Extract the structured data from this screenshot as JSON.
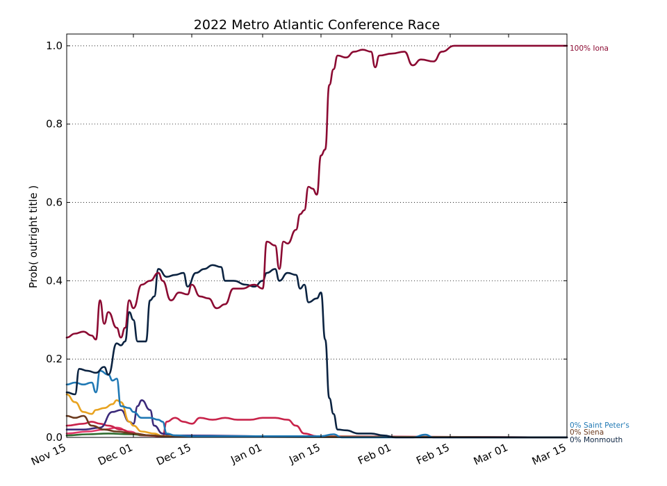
{
  "chart_data": {
    "type": "line",
    "title": "2022 Metro Atlantic Conference Race",
    "xlabel": "",
    "ylabel": "Prob( outright title )",
    "x_ticks": [
      "Nov 15",
      "Dec 01",
      "Dec 15",
      "Jan 01",
      "Jan 15",
      "Feb 01",
      "Feb 15",
      "Mar 01",
      "Mar 15"
    ],
    "x_range": [
      "2021-11-15",
      "2022-03-15"
    ],
    "y_ticks": [
      "0.0",
      "0.2",
      "0.4",
      "0.6",
      "0.8",
      "1.0"
    ],
    "ylim": [
      0,
      1.03
    ],
    "grid": "horizontal dotted",
    "end_labels": [
      {
        "text": "100% Iona",
        "color": "#8b0a32"
      },
      {
        "text": "0% Saint Peter's",
        "color": "#1f78b4"
      },
      {
        "text": "0% Siena",
        "color": "#6b3a1e"
      },
      {
        "text": "0% Monmouth",
        "color": "#0b2341"
      }
    ],
    "series": [
      {
        "name": "Iona",
        "color": "#8b0a32",
        "points": [
          [
            "2021-11-15",
            0.255
          ],
          [
            "2021-11-17",
            0.265
          ],
          [
            "2021-11-19",
            0.27
          ],
          [
            "2021-11-21",
            0.26
          ],
          [
            "2021-11-22",
            0.25
          ],
          [
            "2021-11-23",
            0.35
          ],
          [
            "2021-11-24",
            0.29
          ],
          [
            "2021-11-25",
            0.32
          ],
          [
            "2021-11-27",
            0.28
          ],
          [
            "2021-11-28",
            0.255
          ],
          [
            "2021-11-29",
            0.28
          ],
          [
            "2021-11-30",
            0.35
          ],
          [
            "2021-12-01",
            0.33
          ],
          [
            "2021-12-03",
            0.39
          ],
          [
            "2021-12-05",
            0.4
          ],
          [
            "2021-12-07",
            0.42
          ],
          [
            "2021-12-08",
            0.4
          ],
          [
            "2021-12-10",
            0.35
          ],
          [
            "2021-12-12",
            0.37
          ],
          [
            "2021-12-14",
            0.365
          ],
          [
            "2021-12-15",
            0.39
          ],
          [
            "2021-12-17",
            0.36
          ],
          [
            "2021-12-19",
            0.355
          ],
          [
            "2021-12-21",
            0.33
          ],
          [
            "2021-12-23",
            0.34
          ],
          [
            "2021-12-25",
            0.38
          ],
          [
            "2021-12-27",
            0.38
          ],
          [
            "2021-12-30",
            0.39
          ],
          [
            "2022-01-01",
            0.38
          ],
          [
            "2022-01-02",
            0.5
          ],
          [
            "2022-01-04",
            0.49
          ],
          [
            "2022-01-05",
            0.43
          ],
          [
            "2022-01-06",
            0.5
          ],
          [
            "2022-01-07",
            0.495
          ],
          [
            "2022-01-09",
            0.53
          ],
          [
            "2022-01-10",
            0.57
          ],
          [
            "2022-01-11",
            0.58
          ],
          [
            "2022-01-12",
            0.64
          ],
          [
            "2022-01-13",
            0.635
          ],
          [
            "2022-01-14",
            0.62
          ],
          [
            "2022-01-15",
            0.72
          ],
          [
            "2022-01-16",
            0.735
          ],
          [
            "2022-01-17",
            0.9
          ],
          [
            "2022-01-18",
            0.94
          ],
          [
            "2022-01-19",
            0.975
          ],
          [
            "2022-01-21",
            0.97
          ],
          [
            "2022-01-23",
            0.985
          ],
          [
            "2022-01-25",
            0.99
          ],
          [
            "2022-01-27",
            0.985
          ],
          [
            "2022-01-28",
            0.945
          ],
          [
            "2022-01-29",
            0.975
          ],
          [
            "2022-02-01",
            0.98
          ],
          [
            "2022-02-04",
            0.985
          ],
          [
            "2022-02-06",
            0.95
          ],
          [
            "2022-02-08",
            0.965
          ],
          [
            "2022-02-11",
            0.96
          ],
          [
            "2022-02-13",
            0.985
          ],
          [
            "2022-02-16",
            1.0
          ],
          [
            "2022-02-20",
            1.0
          ],
          [
            "2022-03-15",
            1.0
          ]
        ]
      },
      {
        "name": "Monmouth",
        "color": "#0b2341",
        "points": [
          [
            "2021-11-15",
            0.115
          ],
          [
            "2021-11-17",
            0.11
          ],
          [
            "2021-11-18",
            0.175
          ],
          [
            "2021-11-20",
            0.17
          ],
          [
            "2021-11-22",
            0.165
          ],
          [
            "2021-11-24",
            0.18
          ],
          [
            "2021-11-25",
            0.16
          ],
          [
            "2021-11-27",
            0.24
          ],
          [
            "2021-11-28",
            0.235
          ],
          [
            "2021-11-29",
            0.245
          ],
          [
            "2021-11-30",
            0.32
          ],
          [
            "2021-12-01",
            0.3
          ],
          [
            "2021-12-02",
            0.245
          ],
          [
            "2021-12-04",
            0.245
          ],
          [
            "2021-12-05",
            0.35
          ],
          [
            "2021-12-06",
            0.36
          ],
          [
            "2021-12-07",
            0.43
          ],
          [
            "2021-12-09",
            0.41
          ],
          [
            "2021-12-11",
            0.415
          ],
          [
            "2021-12-13",
            0.42
          ],
          [
            "2021-12-14",
            0.385
          ],
          [
            "2021-12-16",
            0.42
          ],
          [
            "2021-12-18",
            0.43
          ],
          [
            "2021-12-20",
            0.44
          ],
          [
            "2021-12-22",
            0.435
          ],
          [
            "2021-12-23",
            0.4
          ],
          [
            "2021-12-25",
            0.4
          ],
          [
            "2021-12-28",
            0.39
          ],
          [
            "2021-12-30",
            0.385
          ],
          [
            "2022-01-01",
            0.4
          ],
          [
            "2022-01-02",
            0.42
          ],
          [
            "2022-01-04",
            0.43
          ],
          [
            "2022-01-05",
            0.4
          ],
          [
            "2022-01-07",
            0.42
          ],
          [
            "2022-01-09",
            0.415
          ],
          [
            "2022-01-10",
            0.38
          ],
          [
            "2022-01-11",
            0.39
          ],
          [
            "2022-01-12",
            0.345
          ],
          [
            "2022-01-14",
            0.355
          ],
          [
            "2022-01-15",
            0.37
          ],
          [
            "2022-01-16",
            0.25
          ],
          [
            "2022-01-17",
            0.1
          ],
          [
            "2022-01-18",
            0.06
          ],
          [
            "2022-01-19",
            0.02
          ],
          [
            "2022-01-21",
            0.018
          ],
          [
            "2022-01-24",
            0.01
          ],
          [
            "2022-01-27",
            0.01
          ],
          [
            "2022-01-30",
            0.005
          ],
          [
            "2022-02-02",
            0.0
          ],
          [
            "2022-03-15",
            0.0
          ]
        ]
      },
      {
        "name": "Saint Peter's",
        "color": "#1f78b4",
        "points": [
          [
            "2021-11-15",
            0.135
          ],
          [
            "2021-11-17",
            0.14
          ],
          [
            "2021-11-19",
            0.135
          ],
          [
            "2021-11-21",
            0.14
          ],
          [
            "2021-11-22",
            0.115
          ],
          [
            "2021-11-23",
            0.17
          ],
          [
            "2021-11-25",
            0.16
          ],
          [
            "2021-11-26",
            0.145
          ],
          [
            "2021-11-27",
            0.15
          ],
          [
            "2021-11-28",
            0.08
          ],
          [
            "2021-11-30",
            0.075
          ],
          [
            "2021-12-01",
            0.065
          ],
          [
            "2021-12-03",
            0.05
          ],
          [
            "2021-12-05",
            0.05
          ],
          [
            "2021-12-07",
            0.045
          ],
          [
            "2021-12-08",
            0.04
          ],
          [
            "2021-12-09",
            0.01
          ],
          [
            "2021-12-11",
            0.005
          ],
          [
            "2021-12-15",
            0.003
          ],
          [
            "2022-01-15",
            0.003
          ],
          [
            "2022-01-18",
            0.008
          ],
          [
            "2022-01-20",
            0.0
          ],
          [
            "2022-02-06",
            0.0
          ],
          [
            "2022-02-09",
            0.007
          ],
          [
            "2022-02-11",
            0.0
          ],
          [
            "2022-03-15",
            0.0
          ]
        ]
      },
      {
        "name": "Siena",
        "color": "#6b3a1e",
        "points": [
          [
            "2021-11-15",
            0.055
          ],
          [
            "2021-11-17",
            0.05
          ],
          [
            "2021-11-19",
            0.055
          ],
          [
            "2021-11-21",
            0.03
          ],
          [
            "2021-11-24",
            0.02
          ],
          [
            "2021-11-27",
            0.015
          ],
          [
            "2021-12-01",
            0.01
          ],
          [
            "2021-12-05",
            0.005
          ],
          [
            "2021-12-10",
            0.002
          ],
          [
            "2022-03-15",
            0.0
          ]
        ]
      },
      {
        "name": "",
        "color": "#e8a320",
        "points": [
          [
            "2021-11-15",
            0.11
          ],
          [
            "2021-11-17",
            0.09
          ],
          [
            "2021-11-19",
            0.065
          ],
          [
            "2021-11-21",
            0.06
          ],
          [
            "2021-11-22",
            0.07
          ],
          [
            "2021-11-24",
            0.075
          ],
          [
            "2021-11-26",
            0.085
          ],
          [
            "2021-11-27",
            0.095
          ],
          [
            "2021-11-28",
            0.09
          ],
          [
            "2021-11-30",
            0.04
          ],
          [
            "2021-12-01",
            0.03
          ],
          [
            "2021-12-03",
            0.015
          ],
          [
            "2021-12-06",
            0.01
          ],
          [
            "2021-12-08",
            0.003
          ],
          [
            "2022-03-15",
            0.0
          ]
        ]
      },
      {
        "name": "",
        "color": "#3b2a7a",
        "points": [
          [
            "2021-11-15",
            0.02
          ],
          [
            "2021-11-19",
            0.02
          ],
          [
            "2021-11-23",
            0.025
          ],
          [
            "2021-11-26",
            0.065
          ],
          [
            "2021-11-28",
            0.07
          ],
          [
            "2021-11-30",
            0.04
          ],
          [
            "2021-12-01",
            0.035
          ],
          [
            "2021-12-02",
            0.08
          ],
          [
            "2021-12-03",
            0.095
          ],
          [
            "2021-12-05",
            0.07
          ],
          [
            "2021-12-06",
            0.03
          ],
          [
            "2021-12-08",
            0.01
          ],
          [
            "2021-12-10",
            0.005
          ],
          [
            "2022-01-15",
            0.002
          ],
          [
            "2022-03-15",
            0.0
          ]
        ]
      },
      {
        "name": "",
        "color": "#c8234a",
        "points": [
          [
            "2021-11-15",
            0.03
          ],
          [
            "2021-11-19",
            0.035
          ],
          [
            "2021-11-21",
            0.04
          ],
          [
            "2021-11-23",
            0.035
          ],
          [
            "2021-11-25",
            0.03
          ],
          [
            "2021-11-28",
            0.02
          ],
          [
            "2021-12-01",
            0.01
          ],
          [
            "2021-12-05",
            0.005
          ],
          [
            "2021-12-08",
            0.002
          ],
          [
            "2021-12-09",
            0.04
          ],
          [
            "2021-12-11",
            0.05
          ],
          [
            "2021-12-13",
            0.04
          ],
          [
            "2021-12-15",
            0.035
          ],
          [
            "2021-12-17",
            0.05
          ],
          [
            "2021-12-20",
            0.045
          ],
          [
            "2021-12-23",
            0.05
          ],
          [
            "2021-12-26",
            0.045
          ],
          [
            "2021-12-29",
            0.045
          ],
          [
            "2022-01-01",
            0.05
          ],
          [
            "2022-01-04",
            0.05
          ],
          [
            "2022-01-07",
            0.045
          ],
          [
            "2022-01-09",
            0.03
          ],
          [
            "2022-01-11",
            0.01
          ],
          [
            "2022-01-14",
            0.003
          ],
          [
            "2022-03-15",
            0.0
          ]
        ]
      },
      {
        "name": "",
        "color": "#2f6b2f",
        "points": [
          [
            "2021-11-15",
            0.005
          ],
          [
            "2021-11-20",
            0.008
          ],
          [
            "2021-11-25",
            0.01
          ],
          [
            "2021-11-30",
            0.008
          ],
          [
            "2021-12-05",
            0.005
          ],
          [
            "2021-12-12",
            0.002
          ],
          [
            "2022-03-15",
            0.0
          ]
        ]
      },
      {
        "name": "",
        "color": "#e03a6a",
        "points": [
          [
            "2021-11-15",
            0.01
          ],
          [
            "2021-11-20",
            0.015
          ],
          [
            "2021-11-24",
            0.02
          ],
          [
            "2021-11-27",
            0.025
          ],
          [
            "2021-11-30",
            0.015
          ],
          [
            "2021-12-03",
            0.005
          ],
          [
            "2021-12-08",
            0.003
          ],
          [
            "2022-03-15",
            0.0
          ]
        ]
      }
    ]
  }
}
